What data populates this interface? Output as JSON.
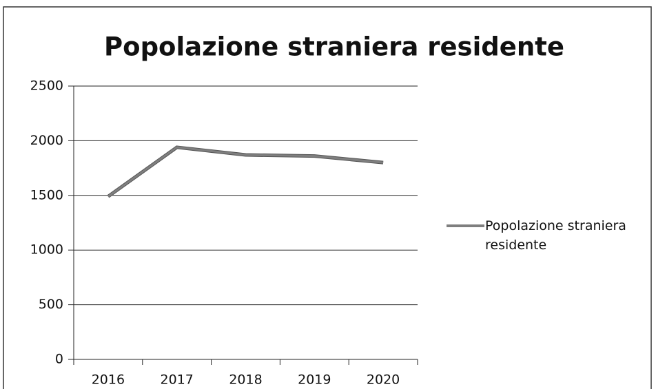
{
  "chart_data": {
    "type": "line",
    "title": "Popolazione straniera residente",
    "categories": [
      "2016",
      "2017",
      "2018",
      "2019",
      "2020"
    ],
    "series": [
      {
        "name": "Popolazione straniera residente",
        "color": "#7f7f7f",
        "values": [
          1490,
          1940,
          1870,
          1860,
          1800
        ]
      }
    ],
    "ylim": [
      0,
      2500
    ],
    "yticks": [
      0,
      500,
      1000,
      1500,
      2000,
      2500
    ],
    "grid": true,
    "legend": "right"
  }
}
